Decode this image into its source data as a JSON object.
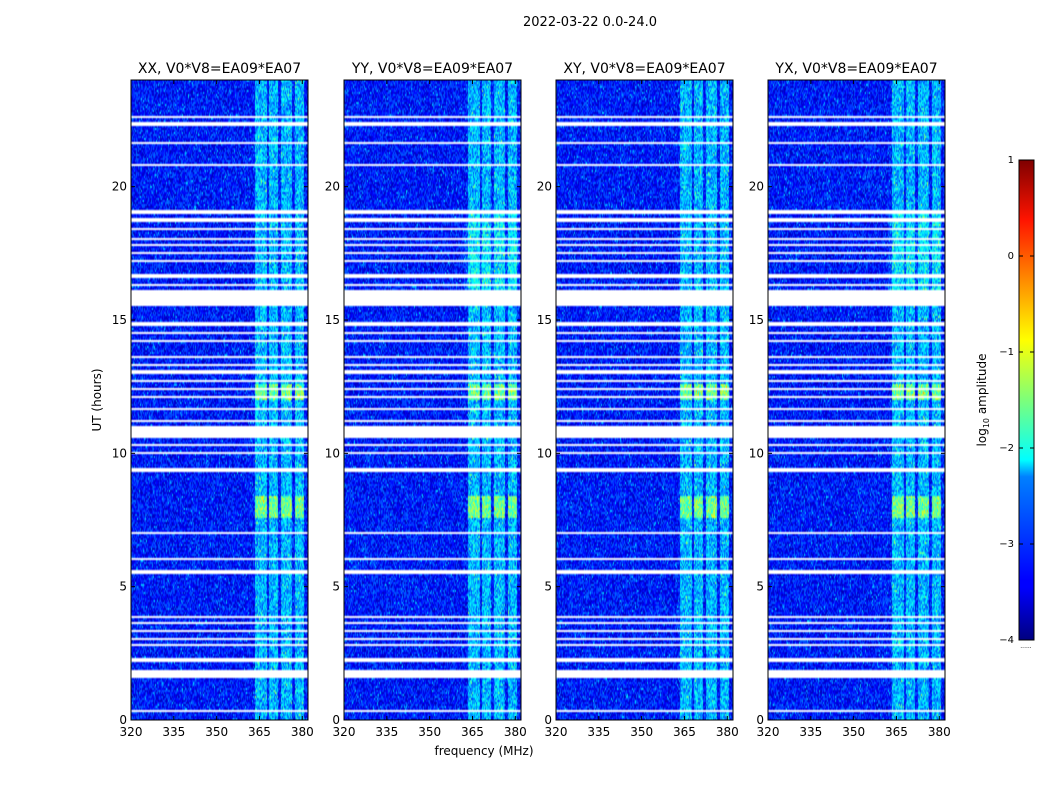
{
  "chart_data": {
    "type": "heatmap",
    "title": "2022-03-22 0.0-24.0",
    "xlabel": "frequency (MHz)",
    "ylabel": "UT (hours)",
    "xlim": [
      320,
      382
    ],
    "ylim": [
      0,
      24
    ],
    "xticks": [
      320,
      335,
      350,
      365,
      380
    ],
    "yticks": [
      0,
      5,
      10,
      15,
      20
    ],
    "panels": [
      {
        "name": "XX",
        "title": "XX, V0*V8=EA09*EA07"
      },
      {
        "name": "YY",
        "title": "YY, V0*V8=EA09*EA07"
      },
      {
        "name": "XY",
        "title": "XY, V0*V8=EA09*EA07"
      },
      {
        "name": "YX",
        "title": "YX, V0*V8=EA09*EA07"
      }
    ],
    "colorbar": {
      "label": "log10 amplitude",
      "label_main": "log",
      "label_sub": "10",
      "label_rest": " amplitude",
      "range": [
        -4,
        1
      ],
      "ticks": [
        1,
        0,
        -1,
        -2,
        -3,
        -4
      ],
      "tick_labels": [
        "1",
        "0",
        "−1",
        "−2",
        "−3",
        "−4"
      ]
    },
    "background_level": -3.3,
    "rfi_bands_mhz": [
      [
        363.5,
        367.5
      ],
      [
        368.5,
        371.5
      ],
      [
        372.5,
        376.5
      ],
      [
        377.5,
        380.5
      ]
    ],
    "bright_rfi_ut": [
      [
        7.6,
        8.4
      ],
      [
        12.0,
        12.6
      ]
    ],
    "flagged_ut_ranges": [
      [
        0.3,
        0.35
      ],
      [
        1.6,
        1.85
      ],
      [
        2.2,
        2.35
      ],
      [
        2.8,
        2.85
      ],
      [
        3.0,
        3.05
      ],
      [
        3.3,
        3.4
      ],
      [
        3.6,
        3.65
      ],
      [
        3.85,
        3.9
      ],
      [
        5.5,
        5.65
      ],
      [
        6.0,
        6.05
      ],
      [
        6.8,
        6.85
      ],
      [
        7.0,
        7.05
      ],
      [
        7.4,
        7.45
      ],
      [
        9.3,
        9.45
      ],
      [
        9.8,
        9.85
      ],
      [
        10.0,
        10.05
      ],
      [
        10.3,
        10.35
      ],
      [
        10.6,
        11.0
      ],
      [
        11.2,
        11.25
      ],
      [
        11.6,
        11.7
      ],
      [
        12.1,
        12.15
      ],
      [
        12.4,
        12.45
      ],
      [
        12.7,
        12.75
      ],
      [
        13.0,
        13.1
      ],
      [
        13.3,
        13.35
      ],
      [
        13.6,
        13.65
      ],
      [
        13.85,
        13.9
      ],
      [
        14.15,
        14.25
      ],
      [
        14.5,
        14.55
      ],
      [
        14.8,
        14.9
      ],
      [
        15.2,
        15.25
      ],
      [
        15.5,
        16.1
      ],
      [
        16.3,
        16.35
      ],
      [
        16.6,
        16.7
      ],
      [
        17.2,
        17.25
      ],
      [
        17.5,
        17.55
      ],
      [
        17.8,
        17.85
      ],
      [
        18.0,
        18.05
      ],
      [
        18.2,
        18.25
      ],
      [
        18.4,
        18.45
      ],
      [
        18.7,
        18.8
      ],
      [
        19.0,
        19.1
      ],
      [
        20.8,
        20.85
      ],
      [
        22.3,
        22.4
      ],
      [
        22.6,
        22.65
      ],
      [
        21.6,
        21.65
      ]
    ],
    "empty_label": "......"
  }
}
